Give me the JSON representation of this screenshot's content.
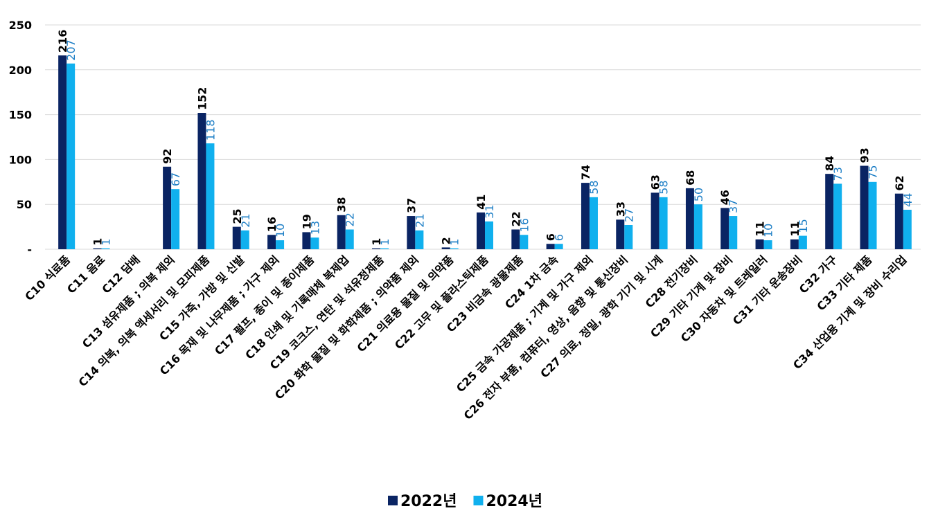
{
  "chart_data": {
    "type": "bar",
    "categories": [
      "C10 식료품",
      "C11 음료",
      "C12 담배",
      "C13 섬유제품 ; 의복 제외",
      "C14 의복, 의복 액세서리 및 모피제품",
      "C15 가죽, 가방 및 신발",
      "C16 목재 및 나무제품 ; 가구 제외",
      "C17 펄프, 종이 및 종이제품",
      "C18 인쇄 및 기록매체 복제업",
      "C19 코크스, 연탄 및 석유정제품",
      "C20 화학 물질 및 화학제품 ; 의약품 제외",
      "C21 의료용 물질 및 의약품",
      "C22 고무 및 플라스틱제품",
      "C23 비금속 광물제품",
      "C24 1차 금속",
      "C25 금속 가공제품 ; 기계 및 가구 제외",
      "C26 전자 부품, 컴퓨터, 영상, 음향 및 통신장비",
      "C27 의료, 정밀, 광학 기기 및 시계",
      "C28 전기장비",
      "C29 기타 기계 및 장비",
      "C30 자동차 및 트레일러",
      "C31 기타 운송장비",
      "C32 가구",
      "C33 기타 제품",
      "C34 산업용 기계 및 장비 수리업"
    ],
    "series": [
      {
        "name": "2022년",
        "color": "#0a2463",
        "label_color": "#000000",
        "values": [
          216,
          1,
          null,
          92,
          152,
          25,
          16,
          19,
          38,
          1,
          37,
          2,
          41,
          22,
          6,
          74,
          33,
          63,
          68,
          46,
          11,
          11,
          84,
          93,
          62
        ]
      },
      {
        "name": "2024년",
        "color": "#10b0ee",
        "label_color": "#1e7fc6",
        "values": [
          207,
          1,
          null,
          67,
          118,
          21,
          10,
          13,
          22,
          1,
          21,
          1,
          31,
          16,
          6,
          58,
          27,
          58,
          50,
          37,
          10,
          15,
          73,
          75,
          44
        ]
      }
    ],
    "ylim": [
      0,
      250
    ],
    "yticks": [
      {
        "value": 0,
        "label": "-"
      },
      50,
      100,
      150,
      200,
      250
    ],
    "grid": true,
    "legend": "bottom"
  }
}
